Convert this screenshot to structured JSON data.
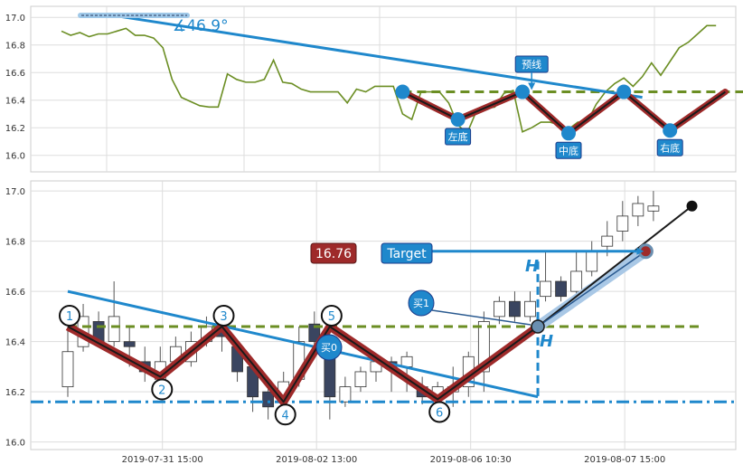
{
  "chart_data": [
    {
      "type": "line",
      "panel": "top",
      "ylim": [
        15.88,
        17.08
      ],
      "yticks": [
        "16.0",
        "16.2",
        "16.4",
        "16.6",
        "16.8",
        "17.0"
      ],
      "grid": true,
      "colors": {
        "price_line": "#6b8e23",
        "trend": "#1f88cc",
        "neckline": "#6b8e23",
        "pattern": "#9e2a2a"
      },
      "series": [
        {
          "values": [
            16.9,
            16.87,
            16.89,
            16.86,
            16.88,
            16.88,
            16.9,
            16.92,
            16.87,
            16.87,
            16.85,
            16.78,
            16.55,
            16.42,
            16.39,
            16.36,
            16.35,
            16.35,
            16.59,
            16.55,
            16.53,
            16.53,
            16.55,
            16.69,
            16.53,
            16.52,
            16.48,
            16.46,
            16.46,
            16.46,
            16.46,
            16.38,
            16.48,
            16.46,
            16.5,
            16.5,
            16.5,
            16.3,
            16.26,
            16.46,
            16.46,
            16.46,
            16.38,
            16.22,
            16.16,
            16.32,
            16.34,
            16.35,
            16.45,
            16.47,
            16.17,
            16.2,
            16.24,
            16.24,
            16.22,
            16.19,
            16.24,
            16.24,
            16.37,
            16.46,
            16.52,
            16.56,
            16.5,
            16.57,
            16.67,
            16.58,
            16.68,
            16.78,
            16.82,
            16.88,
            16.94,
            16.94
          ]
        }
      ],
      "angle_label": "∡46.9°",
      "pattern_points": [
        {
          "i": 37,
          "y": 16.46,
          "label": ""
        },
        {
          "i": 43,
          "y": 16.26,
          "label": "左底"
        },
        {
          "i": 50,
          "y": 16.46,
          "label": ""
        },
        {
          "i": 55,
          "y": 16.16,
          "label": "中底"
        },
        {
          "i": 61,
          "y": 16.46,
          "label": ""
        },
        {
          "i": 66,
          "y": 16.18,
          "label": "右底"
        }
      ],
      "neckline": {
        "y": 16.46,
        "i_start": 37,
        "i_end": 92
      },
      "trendline": {
        "i_start": 6,
        "y_start": 17.01,
        "i_end": 63,
        "y_end": 16.42
      },
      "breakout": {
        "i_start": 66,
        "y_start": 16.18,
        "i_end": 72,
        "y_end": 16.46
      },
      "preview_label": "预线",
      "preview_arrow": {
        "i": 51,
        "y": 16.46
      }
    },
    {
      "type": "candlestick",
      "panel": "bottom",
      "ylim": [
        15.97,
        17.04
      ],
      "yticks": [
        "16.0",
        "16.2",
        "16.4",
        "16.6",
        "16.8",
        "17.0"
      ],
      "xtick_labels": [
        {
          "i": 3.5,
          "label": "2019-07-31 15:00"
        },
        {
          "i": 13.5,
          "label": "2019-08-02 13:00"
        },
        {
          "i": 23.5,
          "label": "2019-08-06 10:30"
        },
        {
          "i": 33.5,
          "label": "2019-08-07 15:00"
        }
      ],
      "candles": [
        {
          "o": 16.22,
          "c": 16.36,
          "h": 16.45,
          "l": 16.18
        },
        {
          "o": 16.38,
          "c": 16.5,
          "h": 16.55,
          "l": 16.36
        },
        {
          "o": 16.48,
          "c": 16.4,
          "h": 16.52,
          "l": 16.38
        },
        {
          "o": 16.4,
          "c": 16.5,
          "h": 16.64,
          "l": 16.38
        },
        {
          "o": 16.4,
          "c": 16.38,
          "h": 16.46,
          "l": 16.3
        },
        {
          "o": 16.32,
          "c": 16.28,
          "h": 16.38,
          "l": 16.24
        },
        {
          "o": 16.25,
          "c": 16.32,
          "h": 16.38,
          "l": 16.24
        },
        {
          "o": 16.32,
          "c": 16.38,
          "h": 16.42,
          "l": 16.3
        },
        {
          "o": 16.32,
          "c": 16.4,
          "h": 16.44,
          "l": 16.3
        },
        {
          "o": 16.4,
          "c": 16.46,
          "h": 16.5,
          "l": 16.38
        },
        {
          "o": 16.44,
          "c": 16.42,
          "h": 16.47,
          "l": 16.36
        },
        {
          "o": 16.38,
          "c": 16.28,
          "h": 16.4,
          "l": 16.24
        },
        {
          "o": 16.3,
          "c": 16.18,
          "h": 16.32,
          "l": 16.12
        },
        {
          "o": 16.2,
          "c": 16.14,
          "h": 16.22,
          "l": 16.09
        },
        {
          "o": 16.18,
          "c": 16.24,
          "h": 16.28,
          "l": 16.16
        },
        {
          "o": 16.25,
          "c": 16.4,
          "h": 16.46,
          "l": 16.22
        },
        {
          "o": 16.47,
          "c": 16.4,
          "h": 16.52,
          "l": 16.38
        },
        {
          "o": 16.38,
          "c": 16.18,
          "h": 16.46,
          "l": 16.09
        },
        {
          "o": 16.16,
          "c": 16.22,
          "h": 16.26,
          "l": 16.14
        },
        {
          "o": 16.22,
          "c": 16.28,
          "h": 16.3,
          "l": 16.2
        },
        {
          "o": 16.28,
          "c": 16.32,
          "h": 16.34,
          "l": 16.24
        },
        {
          "o": 16.32,
          "c": 16.3,
          "h": 16.34,
          "l": 16.2
        },
        {
          "o": 16.3,
          "c": 16.34,
          "h": 16.36,
          "l": 16.2
        },
        {
          "o": 16.22,
          "c": 16.18,
          "h": 16.26,
          "l": 16.15
        },
        {
          "o": 16.18,
          "c": 16.22,
          "h": 16.24,
          "l": 16.16
        },
        {
          "o": 16.2,
          "c": 16.22,
          "h": 16.3,
          "l": 16.14
        },
        {
          "o": 16.22,
          "c": 16.34,
          "h": 16.36,
          "l": 16.18
        },
        {
          "o": 16.28,
          "c": 16.48,
          "h": 16.52,
          "l": 16.2
        },
        {
          "o": 16.5,
          "c": 16.56,
          "h": 16.58,
          "l": 16.47
        },
        {
          "o": 16.56,
          "c": 16.5,
          "h": 16.6,
          "l": 16.48
        },
        {
          "o": 16.5,
          "c": 16.56,
          "h": 16.6,
          "l": 16.48
        },
        {
          "o": 16.58,
          "c": 16.64,
          "h": 16.76,
          "l": 16.56
        },
        {
          "o": 16.64,
          "c": 16.58,
          "h": 16.66,
          "l": 16.56
        },
        {
          "o": 16.6,
          "c": 16.68,
          "h": 16.76,
          "l": 16.58
        },
        {
          "o": 16.68,
          "c": 16.76,
          "h": 16.8,
          "l": 16.66
        },
        {
          "o": 16.78,
          "c": 16.82,
          "h": 16.88,
          "l": 16.74
        },
        {
          "o": 16.84,
          "c": 16.9,
          "h": 16.96,
          "l": 16.8
        },
        {
          "o": 16.9,
          "c": 16.95,
          "h": 16.98,
          "l": 16.86
        },
        {
          "o": 16.92,
          "c": 16.94,
          "h": 17.0,
          "l": 16.88
        }
      ],
      "numbered_points": [
        {
          "i": 0,
          "y": 16.46,
          "label": "1"
        },
        {
          "i": 6,
          "y": 16.26,
          "label": "2"
        },
        {
          "i": 10,
          "y": 16.46,
          "label": "3"
        },
        {
          "i": 14,
          "y": 16.16,
          "label": "4"
        },
        {
          "i": 17,
          "y": 16.46,
          "label": "5"
        },
        {
          "i": 24,
          "y": 16.17,
          "label": "6"
        }
      ],
      "neckline": {
        "y": 16.46,
        "i_start": 0,
        "i_end": 41
      },
      "support": {
        "y": 16.16
      },
      "trendline": {
        "i_start": 0,
        "y_start": 16.6,
        "i_end": 30.5,
        "y_end": 16.18
      },
      "breakout_point": {
        "i": 30.5,
        "y": 16.46
      },
      "target_point": {
        "i": 37.5,
        "y": 16.76
      },
      "upper_trend_end": {
        "i": 40.5,
        "y": 16.94
      },
      "price_label": "16.76",
      "target_label": "Target",
      "buy_labels": [
        "买1",
        "买0"
      ],
      "height_label": "H",
      "colors": {
        "neckline": "#6b8e23",
        "trend": "#1f88cc",
        "pattern": "#9e2a2a",
        "support": "#1f88cc",
        "bear": "#3a4560",
        "price_label_bg": "#9e2a2a",
        "target_bg": "#1f88cc"
      }
    }
  ]
}
